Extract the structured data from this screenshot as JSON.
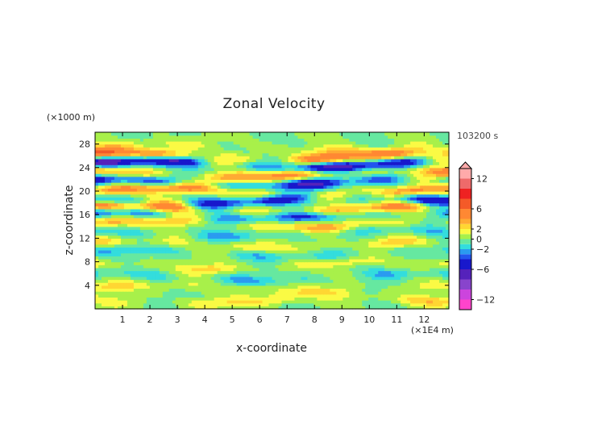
{
  "chart_data": {
    "type": "heatmap",
    "title": "Zonal Velocity",
    "xlabel": "x-coordinate",
    "ylabel": "z-coordinate",
    "x_unit": "(×1E4 m)",
    "y_unit": "(×1000 m)",
    "time_label": "103200 s",
    "xlim": [
      0,
      12.9
    ],
    "ylim": [
      0,
      30
    ],
    "x_ticks": [
      1,
      2,
      3,
      4,
      5,
      6,
      7,
      8,
      9,
      10,
      11,
      12
    ],
    "y_ticks": [
      4,
      8,
      12,
      16,
      20,
      24,
      28
    ],
    "colorbar": {
      "tick_labels": [
        "12",
        "6",
        "2",
        "0",
        "-2",
        "-6",
        "-12"
      ],
      "tick_values": [
        12,
        6,
        2,
        0,
        -2,
        -6,
        -12
      ],
      "levels": [
        -14,
        -12,
        -10,
        -8,
        -6,
        -4,
        -3,
        -2,
        -1,
        0,
        1,
        2,
        3,
        4,
        6,
        8,
        10,
        12,
        14
      ],
      "colors": [
        "#ff44cc",
        "#cc44dd",
        "#8844cc",
        "#5522bb",
        "#1818cc",
        "#2255ee",
        "#2a9bf0",
        "#33dddd",
        "#66e8a0",
        "#a8f04a",
        "#fafa44",
        "#ffd633",
        "#ffaa33",
        "#ff8833",
        "#f45a28",
        "#ee2222",
        "#ee6a6a",
        "#ffaaaa"
      ],
      "range": [
        -14,
        14
      ],
      "extend_max": true
    },
    "bands": [
      {
        "z": 27.5,
        "amp": 1.5,
        "kx": 0.9,
        "ph": 0.0
      },
      {
        "z": 26.0,
        "amp": 5.5,
        "kx": 0.7,
        "ph": 1.1
      },
      {
        "z": 24.6,
        "amp": -7.0,
        "kx": 0.8,
        "ph": 0.5
      },
      {
        "z": 23.0,
        "amp": 5.0,
        "kx": 0.9,
        "ph": 2.0
      },
      {
        "z": 21.5,
        "amp": -5.5,
        "kx": 0.8,
        "ph": 1.5
      },
      {
        "z": 20.0,
        "amp": 4.5,
        "kx": 0.6,
        "ph": 0.2
      },
      {
        "z": 18.5,
        "amp": -5.0,
        "kx": 0.9,
        "ph": 2.7
      },
      {
        "z": 17.0,
        "amp": 5.0,
        "kx": 0.7,
        "ph": 0.9
      },
      {
        "z": 16.0,
        "amp": -4.5,
        "kx": 0.8,
        "ph": 1.8
      },
      {
        "z": 14.5,
        "amp": 3.5,
        "kx": 0.9,
        "ph": 0.4
      },
      {
        "z": 13.0,
        "amp": -2.0,
        "kx": 1.1,
        "ph": 2.2
      },
      {
        "z": 11.0,
        "amp": 2.0,
        "kx": 1.2,
        "ph": 1.0
      },
      {
        "z": 9.5,
        "amp": -1.8,
        "kx": 1.0,
        "ph": 0.6
      },
      {
        "z": 7.5,
        "amp": 2.0,
        "kx": 1.3,
        "ph": 2.5
      },
      {
        "z": 5.5,
        "amp": -1.8,
        "kx": 1.1,
        "ph": 1.4
      },
      {
        "z": 3.5,
        "amp": 2.0,
        "kx": 1.0,
        "ph": 0.3
      },
      {
        "z": 1.5,
        "amp": 2.2,
        "kx": 0.9,
        "ph": 2.9
      }
    ]
  }
}
